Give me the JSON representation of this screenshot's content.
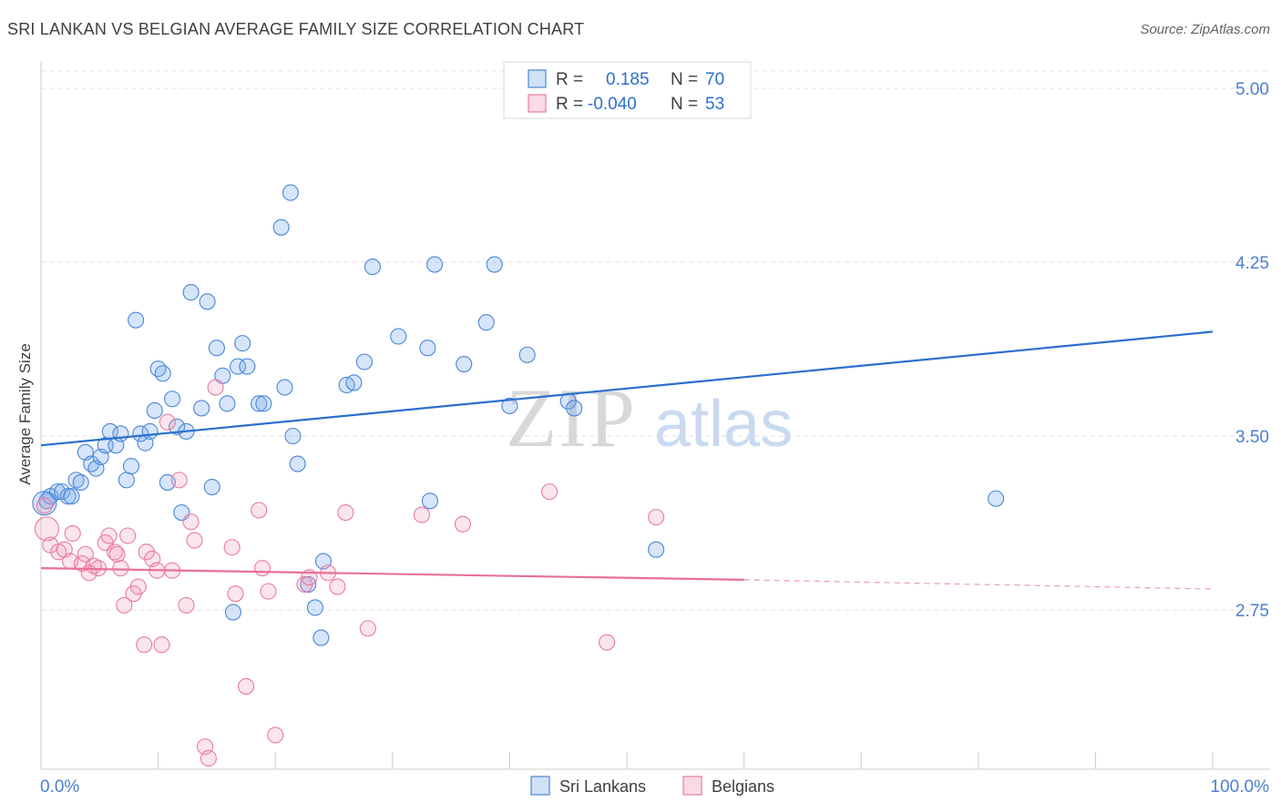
{
  "title": "SRI LANKAN VS BELGIAN AVERAGE FAMILY SIZE CORRELATION CHART",
  "source": "Source: ZipAtlas.com",
  "colors": {
    "blue": "#4a86d8",
    "blue_fill": "rgba(120,170,235,0.30)",
    "blue_line": "#2b6fcc",
    "pink": "#e87aa0",
    "pink_fill": "rgba(240,150,180,0.25)",
    "pink_line": "#e8709a",
    "axis_text": "#4a7fd0"
  },
  "legend": {
    "rows": [
      {
        "r_label": "R =",
        "r_value": "0.185",
        "n_label": "N =",
        "n_value": "70"
      },
      {
        "r_label": "R =",
        "r_value": "-0.040",
        "n_label": "N =",
        "n_value": "53"
      }
    ]
  },
  "watermark": {
    "zip": "ZIP",
    "atlas": "atlas"
  },
  "chart_data": {
    "type": "scatter",
    "title": "SRI LANKAN VS BELGIAN AVERAGE FAMILY SIZE CORRELATION CHART",
    "xlabel": "",
    "ylabel": "Average Family Size",
    "xlim": [
      0,
      100
    ],
    "ylim": [
      2.0,
      5.1
    ],
    "x_tick_labels": [
      "0.0%",
      "100.0%"
    ],
    "y_ticks": [
      5.0,
      4.25,
      3.5,
      2.75
    ],
    "y_tick_labels": [
      "5.00",
      "4.25",
      "3.50",
      "2.75"
    ],
    "legend_position": "bottom-center",
    "series": [
      {
        "name": "Sri Lankans",
        "trend": {
          "x": [
            0,
            100
          ],
          "y": [
            3.46,
            3.95
          ]
        },
        "points": [
          [
            0.5,
            3.22
          ],
          [
            0.8,
            3.24
          ],
          [
            1.4,
            3.26
          ],
          [
            1.8,
            3.26
          ],
          [
            2.3,
            3.24
          ],
          [
            2.6,
            3.24
          ],
          [
            3.0,
            3.31
          ],
          [
            3.4,
            3.3
          ],
          [
            3.8,
            3.43
          ],
          [
            4.3,
            3.38
          ],
          [
            4.7,
            3.36
          ],
          [
            5.1,
            3.41
          ],
          [
            5.5,
            3.46
          ],
          [
            5.9,
            3.52
          ],
          [
            6.4,
            3.46
          ],
          [
            6.8,
            3.51
          ],
          [
            7.3,
            3.31
          ],
          [
            7.7,
            3.37
          ],
          [
            8.1,
            4.0
          ],
          [
            8.5,
            3.51
          ],
          [
            8.9,
            3.47
          ],
          [
            9.3,
            3.52
          ],
          [
            9.7,
            3.61
          ],
          [
            10.0,
            3.79
          ],
          [
            10.4,
            3.77
          ],
          [
            10.8,
            3.3
          ],
          [
            11.2,
            3.66
          ],
          [
            11.6,
            3.54
          ],
          [
            12.0,
            3.17
          ],
          [
            12.4,
            3.52
          ],
          [
            12.8,
            4.12
          ],
          [
            13.7,
            3.62
          ],
          [
            14.2,
            4.08
          ],
          [
            14.6,
            3.28
          ],
          [
            15.0,
            3.88
          ],
          [
            15.5,
            3.76
          ],
          [
            15.9,
            3.64
          ],
          [
            16.4,
            2.74
          ],
          [
            16.8,
            3.8
          ],
          [
            17.2,
            3.9
          ],
          [
            17.6,
            3.8
          ],
          [
            18.6,
            3.64
          ],
          [
            19.0,
            3.64
          ],
          [
            20.5,
            4.4
          ],
          [
            20.8,
            3.71
          ],
          [
            21.5,
            3.5
          ],
          [
            21.3,
            4.55
          ],
          [
            21.9,
            3.38
          ],
          [
            22.8,
            2.86
          ],
          [
            23.4,
            2.76
          ],
          [
            23.9,
            2.63
          ],
          [
            24.1,
            2.96
          ],
          [
            26.1,
            3.72
          ],
          [
            26.7,
            3.73
          ],
          [
            27.6,
            3.82
          ],
          [
            28.3,
            4.23
          ],
          [
            30.5,
            3.93
          ],
          [
            33.0,
            3.88
          ],
          [
            33.2,
            3.22
          ],
          [
            33.6,
            4.24
          ],
          [
            36.1,
            3.81
          ],
          [
            38.0,
            3.99
          ],
          [
            38.7,
            4.24
          ],
          [
            40.0,
            3.63
          ],
          [
            41.5,
            3.85
          ],
          [
            45.0,
            3.65
          ],
          [
            45.5,
            3.62
          ],
          [
            52.5,
            3.01
          ],
          [
            81.5,
            3.23
          ],
          [
            0.3,
            3.21
          ]
        ]
      },
      {
        "name": "Belgians",
        "trend": {
          "x": [
            0,
            60
          ],
          "y": [
            2.93,
            2.88
          ]
        },
        "trend_dashed": {
          "x": [
            60,
            100
          ],
          "y": [
            2.88,
            2.84
          ]
        },
        "points": [
          [
            0.3,
            3.2
          ],
          [
            0.8,
            3.03
          ],
          [
            1.5,
            3.0
          ],
          [
            2.0,
            3.01
          ],
          [
            2.5,
            2.96
          ],
          [
            2.7,
            3.08
          ],
          [
            3.5,
            2.95
          ],
          [
            3.8,
            2.99
          ],
          [
            4.1,
            2.91
          ],
          [
            4.5,
            2.94
          ],
          [
            4.9,
            2.93
          ],
          [
            5.5,
            3.04
          ],
          [
            5.8,
            3.07
          ],
          [
            6.3,
            3.0
          ],
          [
            6.5,
            2.99
          ],
          [
            6.8,
            2.93
          ],
          [
            7.1,
            2.77
          ],
          [
            7.4,
            3.07
          ],
          [
            7.9,
            2.82
          ],
          [
            8.3,
            2.85
          ],
          [
            8.8,
            2.6
          ],
          [
            9.0,
            3.0
          ],
          [
            9.5,
            2.97
          ],
          [
            9.9,
            2.92
          ],
          [
            10.3,
            2.6
          ],
          [
            10.8,
            3.56
          ],
          [
            11.2,
            2.92
          ],
          [
            11.8,
            3.31
          ],
          [
            12.4,
            2.77
          ],
          [
            12.8,
            3.13
          ],
          [
            13.1,
            3.05
          ],
          [
            14.0,
            2.16
          ],
          [
            14.3,
            2.11
          ],
          [
            14.9,
            3.71
          ],
          [
            16.3,
            3.02
          ],
          [
            16.6,
            2.82
          ],
          [
            17.5,
            2.42
          ],
          [
            18.6,
            3.18
          ],
          [
            18.9,
            2.93
          ],
          [
            19.4,
            2.83
          ],
          [
            20.0,
            2.21
          ],
          [
            22.5,
            2.86
          ],
          [
            22.9,
            2.89
          ],
          [
            24.5,
            2.91
          ],
          [
            25.3,
            2.85
          ],
          [
            26.0,
            3.17
          ],
          [
            27.9,
            2.67
          ],
          [
            32.5,
            3.16
          ],
          [
            36.0,
            3.12
          ],
          [
            43.4,
            3.26
          ],
          [
            48.3,
            2.61
          ],
          [
            52.5,
            3.15
          ],
          [
            0.5,
            3.1
          ]
        ]
      }
    ]
  }
}
